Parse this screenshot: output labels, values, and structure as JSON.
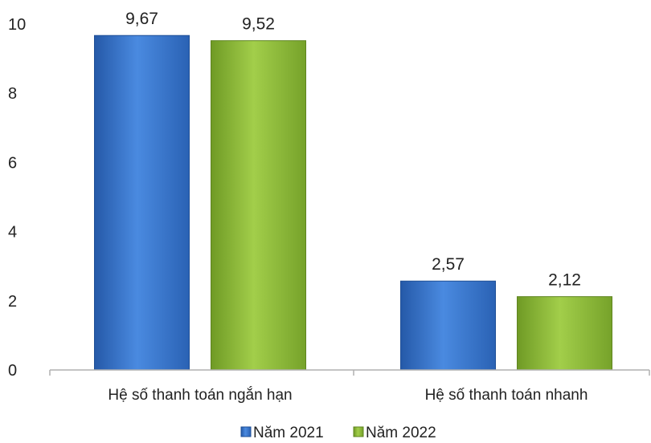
{
  "colors": {
    "series_2021": "#2f6fc4",
    "series_2021_light": "#4e8fe0",
    "series_2022": "#86b334",
    "series_2022_light": "#a3cf49",
    "axis": "#b0b0b0",
    "text": "#222222"
  },
  "chart_data": {
    "type": "bar",
    "title": "",
    "xlabel": "",
    "ylabel": "",
    "categories": [
      "Hệ số thanh toán ngắn hạn",
      "Hệ số thanh toán nhanh"
    ],
    "series": [
      {
        "name": "Năm 2021",
        "values": [
          9.67,
          2.57
        ],
        "labels": [
          "9,67",
          "2,57"
        ]
      },
      {
        "name": "Năm 2022",
        "values": [
          9.52,
          2.12
        ],
        "labels": [
          "9,52",
          "2,12"
        ]
      }
    ],
    "ylim": [
      0,
      10
    ],
    "yticks": [
      0,
      2,
      4,
      6,
      8,
      10
    ],
    "ytick_labels": [
      "0",
      "2",
      "4",
      "6",
      "8",
      "10"
    ],
    "grid": false,
    "legend_position": "bottom"
  }
}
